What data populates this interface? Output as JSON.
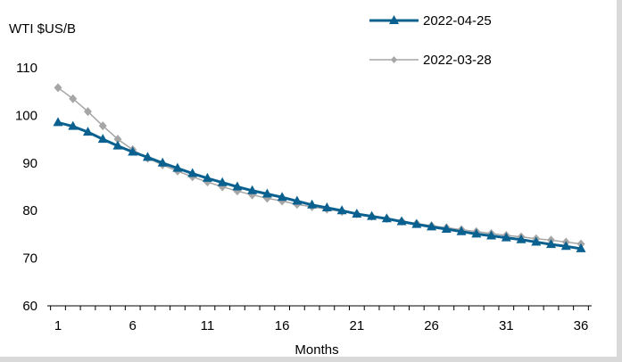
{
  "chart_data": {
    "type": "line",
    "title": "",
    "ylabel": "WTI $US/B",
    "xlabel": "Months",
    "ylim": [
      60,
      110
    ],
    "xlim": [
      1,
      36
    ],
    "y_ticks": [
      60,
      70,
      80,
      90,
      100,
      110
    ],
    "x_ticks": [
      1,
      6,
      11,
      16,
      21,
      26,
      31,
      36
    ],
    "grid": false,
    "legend_position": "top-right",
    "x": [
      1,
      2,
      3,
      4,
      5,
      6,
      7,
      8,
      9,
      10,
      11,
      12,
      13,
      14,
      15,
      16,
      17,
      18,
      19,
      20,
      21,
      22,
      23,
      24,
      25,
      26,
      27,
      28,
      29,
      30,
      31,
      32,
      33,
      34,
      35,
      36
    ],
    "series": [
      {
        "name": "2022-04-25",
        "color": "#0a6190",
        "marker": "triangle",
        "values": [
          98.5,
          97.7,
          96.5,
          95.0,
          93.6,
          92.3,
          91.2,
          90.0,
          88.9,
          87.8,
          86.8,
          85.9,
          85.0,
          84.2,
          83.5,
          82.8,
          82.0,
          81.2,
          80.6,
          80.0,
          79.3,
          78.8,
          78.3,
          77.7,
          77.1,
          76.6,
          76.1,
          75.6,
          75.1,
          74.7,
          74.3,
          73.9,
          73.4,
          72.9,
          72.5,
          72.0
        ]
      },
      {
        "name": "2022-03-28",
        "color": "#a6a6a6",
        "marker": "diamond",
        "values": [
          105.8,
          103.5,
          100.8,
          97.8,
          95.0,
          92.8,
          91.0,
          89.6,
          88.3,
          87.1,
          86.0,
          85.0,
          84.1,
          83.3,
          82.6,
          82.0,
          81.3,
          80.8,
          80.3,
          79.8,
          79.3,
          78.8,
          78.3,
          77.8,
          77.3,
          76.8,
          76.4,
          76.0,
          75.6,
          75.2,
          74.8,
          74.5,
          74.1,
          73.8,
          73.4,
          73.0
        ]
      }
    ]
  }
}
